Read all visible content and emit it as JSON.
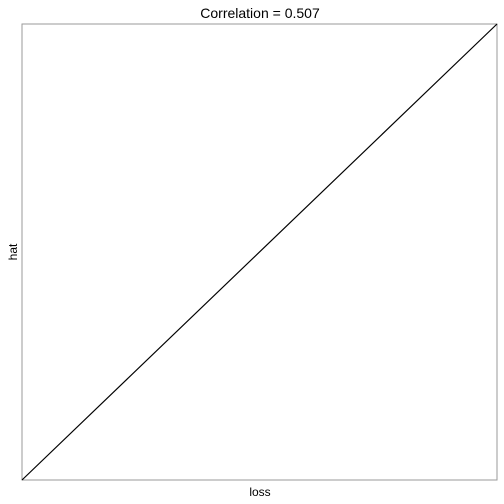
{
  "chart_data": {
    "type": "line",
    "title": "Correlation = 0.507",
    "xlabel": "loss",
    "ylabel": "hat",
    "grid": false,
    "legend": "none",
    "x_ticks_shown": false,
    "y_ticks_shown": false,
    "xlim": [
      0,
      1
    ],
    "ylim": [
      0,
      1
    ],
    "series": [
      {
        "x": [
          0,
          1
        ],
        "y": [
          0,
          1
        ]
      }
    ],
    "colors": {
      "line": "#000000",
      "frame": "#9a9a9a",
      "background": "#ffffff"
    }
  }
}
